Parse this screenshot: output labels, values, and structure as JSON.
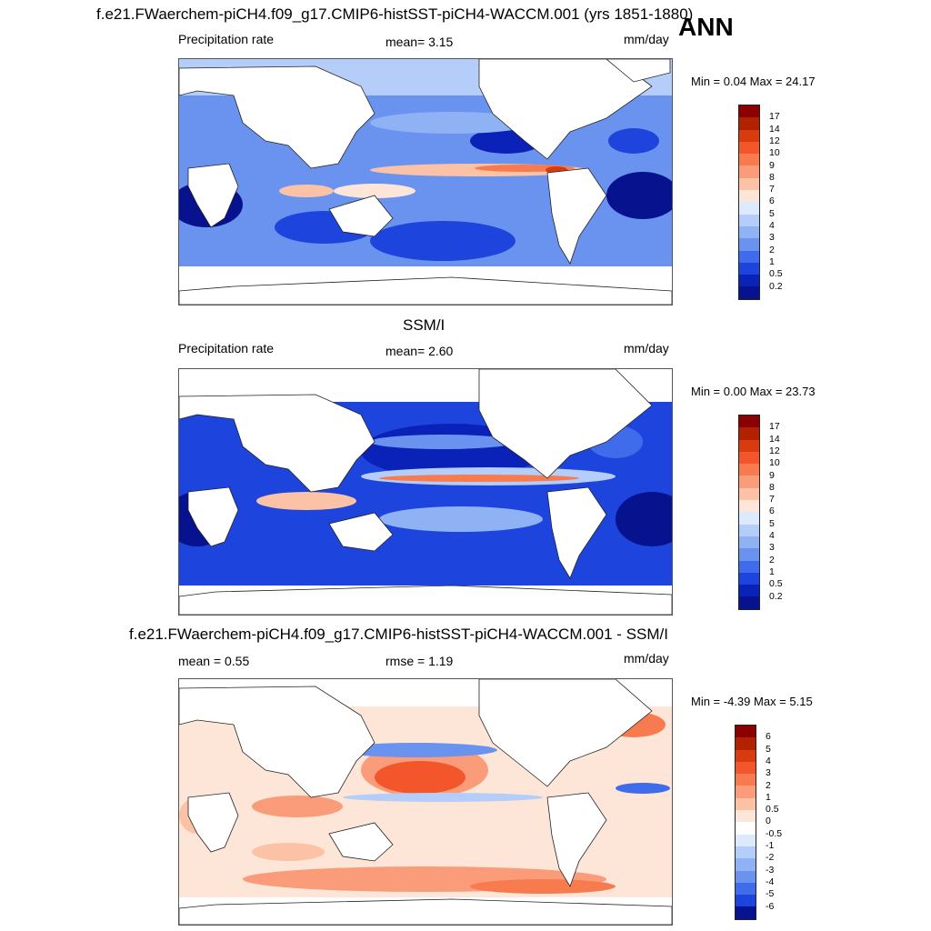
{
  "header": {
    "title1": "f.e21.FWaerchem-piCH4.f09_g17.CMIP6-histSST-piCH4-WACCM.001 (yrs 1851-1880)",
    "season": "ANN"
  },
  "panels": [
    {
      "id": "model",
      "variable": "Precipitation rate",
      "mean_label": "mean=   3.15",
      "units": "mm/day",
      "minmax": "Min =   0.04 Max =  24.17",
      "levels": [
        "17",
        "14",
        "12",
        "10",
        "9",
        "8",
        "7",
        "6",
        "5",
        "4",
        "3",
        "2",
        "1",
        "0.5",
        "0.2"
      ],
      "colors": [
        "#8b0000",
        "#b22200",
        "#d83b0e",
        "#f3562a",
        "#f87b50",
        "#fa9c79",
        "#fcc2a6",
        "#fde6d8",
        "#ddeafe",
        "#b5cdf9",
        "#8fb2f5",
        "#6a93f0",
        "#3f6ceb",
        "#1d45dd",
        "#0a22b8",
        "#06128e"
      ]
    },
    {
      "id": "obs",
      "title": "SSM/I",
      "variable": "Precipitation rate",
      "mean_label": "mean=   2.60",
      "units": "mm/day",
      "minmax": "Min =   0.00 Max =  23.73",
      "levels": [
        "17",
        "14",
        "12",
        "10",
        "9",
        "8",
        "7",
        "6",
        "5",
        "4",
        "3",
        "2",
        "1",
        "0.5",
        "0.2"
      ],
      "colors": [
        "#8b0000",
        "#b22200",
        "#d83b0e",
        "#f3562a",
        "#f87b50",
        "#fa9c79",
        "#fcc2a6",
        "#fde6d8",
        "#ddeafe",
        "#b5cdf9",
        "#8fb2f5",
        "#6a93f0",
        "#3f6ceb",
        "#1d45dd",
        "#0a22b8",
        "#06128e"
      ]
    },
    {
      "id": "diff",
      "title": "f.e21.FWaerchem-piCH4.f09_g17.CMIP6-histSST-piCH4-WACCM.001 - SSM/I",
      "mean_label": "mean =   0.55",
      "rmse_label": "rmse =   1.19",
      "units": "mm/day",
      "minmax": "Min =  -4.39 Max =   5.15",
      "levels": [
        "6",
        "5",
        "4",
        "3",
        "2",
        "1",
        "0.5",
        "0",
        "-0.5",
        "-1",
        "-2",
        "-3",
        "-4",
        "-5",
        "-6"
      ],
      "colors": [
        "#8b0000",
        "#b22200",
        "#d83b0e",
        "#f3562a",
        "#f87b50",
        "#fa9c79",
        "#fcc2a6",
        "#fde6d8",
        "#ffffff",
        "#ddeafe",
        "#b5cdf9",
        "#8fb2f5",
        "#6a93f0",
        "#3f6ceb",
        "#1d45dd",
        "#06128e"
      ]
    }
  ]
}
